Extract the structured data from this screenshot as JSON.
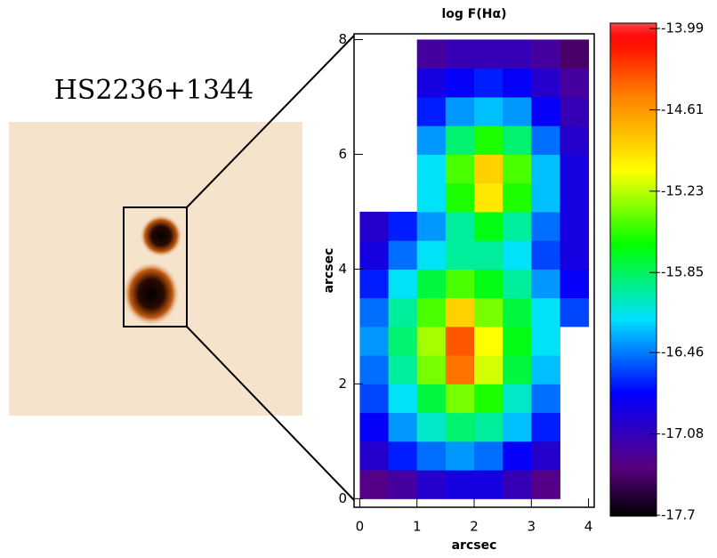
{
  "image_label": "HS2236+1344",
  "chart_data": {
    "type": "heatmap",
    "title": "log F(Hα)",
    "x_label": "arcsec",
    "y_label": "arcsec",
    "x": [
      0.25,
      0.75,
      1.25,
      1.75,
      2.25,
      2.75,
      3.25,
      3.75
    ],
    "y": [
      0.25,
      0.75,
      1.25,
      1.75,
      2.25,
      2.75,
      3.25,
      3.75,
      4.25,
      4.75,
      5.25,
      5.75,
      6.25,
      6.75,
      7.25,
      7.75
    ],
    "values": [
      [
        -17.3,
        -17.2,
        -17.0,
        -16.9,
        -16.9,
        -17.1,
        -17.3,
        null
      ],
      [
        -17.0,
        -16.7,
        -16.5,
        -16.4,
        -16.5,
        -16.8,
        -17.0,
        null
      ],
      [
        -16.8,
        -16.4,
        -16.1,
        -15.9,
        -16.0,
        -16.3,
        -16.7,
        null
      ],
      [
        -16.6,
        -16.2,
        -15.8,
        -15.4,
        -15.6,
        -16.1,
        -16.5,
        null
      ],
      [
        -16.5,
        -16.0,
        -15.4,
        -14.5,
        -15.2,
        -15.8,
        -16.3,
        null
      ],
      [
        -16.4,
        -15.9,
        -15.3,
        -14.4,
        -15.1,
        -15.7,
        -16.2,
        null
      ],
      [
        -16.5,
        -16.0,
        -15.5,
        -14.9,
        -15.4,
        -15.8,
        -16.2,
        -16.6
      ],
      [
        -16.7,
        -16.2,
        -15.8,
        -15.5,
        -15.7,
        -16.0,
        -16.4,
        -16.8
      ],
      [
        -16.9,
        -16.5,
        -16.2,
        -16.0,
        -16.0,
        -16.2,
        -16.6,
        -16.9
      ],
      [
        -17.0,
        -16.7,
        -16.4,
        -16.0,
        -15.7,
        -16.0,
        -16.5,
        -16.9
      ],
      [
        null,
        null,
        -16.2,
        -15.6,
        -15.0,
        -15.6,
        -16.3,
        -16.9
      ],
      [
        null,
        null,
        -16.2,
        -15.5,
        -14.9,
        -15.5,
        -16.3,
        -16.9
      ],
      [
        null,
        null,
        -16.4,
        -15.9,
        -15.6,
        -15.9,
        -16.5,
        -17.0
      ],
      [
        null,
        null,
        -16.7,
        -16.4,
        -16.3,
        -16.4,
        -16.8,
        -17.1
      ],
      [
        null,
        null,
        -16.9,
        -16.8,
        -16.7,
        -16.8,
        -17.0,
        -17.2
      ],
      [
        null,
        null,
        -17.2,
        -17.1,
        -17.1,
        -17.1,
        -17.2,
        -17.4
      ]
    ],
    "xlim": [
      -0.1,
      4.1
    ],
    "ylim": [
      -0.15,
      8.1
    ],
    "xticks": [
      0,
      1,
      2,
      3,
      4
    ],
    "yticks": [
      0,
      2,
      4,
      6,
      8
    ],
    "colormap": "rainbow",
    "clim": [
      -17.7,
      -13.99
    ],
    "cticks": [
      -13.99,
      -14.61,
      -15.23,
      -15.85,
      -16.46,
      -17.08,
      -17.7
    ]
  }
}
